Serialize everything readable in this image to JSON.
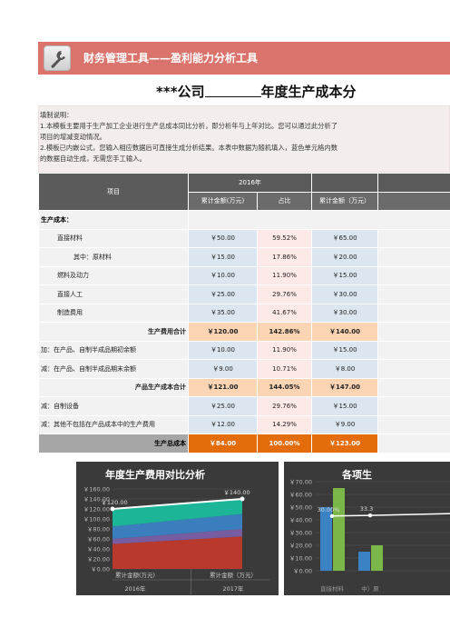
{
  "banner": {
    "title": "财务管理工具——盈利能力分析工具",
    "icon": "wrench-icon"
  },
  "title": {
    "prefix": "***公司",
    "suffix": "年度生产成本分"
  },
  "notes": [
    "填制说明：",
    "1.本模板主要用于生产加工企业进行生产总成本同比分析，即分析年与上年对比。您可以通过此分析了",
    "项目的增减变动情况。",
    "2.模板已内嵌公式，您输入相应数据后可直接生成分析结果。本表中数据为随机填入，蓝色单元格内数",
    "的数据自动生成，无需您手工输入。"
  ],
  "table": {
    "header": {
      "item": "项目",
      "year1": "2016年",
      "col_amount1": "累计金额(万元)",
      "col_share": "占比",
      "col_amount2": "累计金额（万元）"
    },
    "section_label": "生产成本：",
    "rows": [
      {
        "label": "直接材料",
        "a": "￥50.00",
        "p": "59.52%",
        "b": "￥65.00",
        "style": "i1"
      },
      {
        "label": "其中：原材料",
        "a": "￥15.00",
        "p": "17.86%",
        "b": "￥20.00",
        "style": "i2"
      },
      {
        "label": "燃料及动力",
        "a": "￥10.00",
        "p": "11.90%",
        "b": "￥15.00",
        "style": "i1"
      },
      {
        "label": "直接人工",
        "a": "￥25.00",
        "p": "29.76%",
        "b": "￥30.00",
        "style": "i1"
      },
      {
        "label": "制造费用",
        "a": "￥35.00",
        "p": "41.67%",
        "b": "￥30.00",
        "style": "i1"
      },
      {
        "label": "生产费用合计",
        "a": "￥120.00",
        "p": "142.86%",
        "b": "￥140.00",
        "style": "sum"
      },
      {
        "label": "加：在产品、自制半成品期初余额",
        "a": "￥10.00",
        "p": "11.90%",
        "b": "￥15.00",
        "style": "plain"
      },
      {
        "label": "减：在产品、自制半成品期末余额",
        "a": "￥9.00",
        "p": "10.71%",
        "b": "￥8.00",
        "style": "plain"
      },
      {
        "label": "产品生产成本合计",
        "a": "￥121.00",
        "p": "144.05%",
        "b": "￥147.00",
        "style": "sum"
      },
      {
        "label": "减：自制设备",
        "a": "￥25.00",
        "p": "29.76%",
        "b": "￥15.00",
        "style": "plain"
      },
      {
        "label": "减：其他不包括在产品成本中的生产费用",
        "a": "￥12.00",
        "p": "14.29%",
        "b": "￥9.00",
        "style": "plain"
      },
      {
        "label": "生产总成本",
        "a": "￥84.00",
        "p": "100.00%",
        "b": "￥123.00",
        "style": "total"
      }
    ]
  },
  "chart_data": [
    {
      "type": "area",
      "title": "年度生产费用对比分析",
      "categories": [
        "累计金额(万元)\n2016年",
        "累计金额（万元）\n2017年"
      ],
      "category_labels": [
        "累计金额(万元)",
        "累计金额（万元）"
      ],
      "group_labels": [
        "2016年",
        "2017年"
      ],
      "stack": [
        {
          "values": [
            50,
            65
          ],
          "color": "#c0392b"
        },
        {
          "values": [
            10,
            15
          ],
          "color": "#7b5ea7"
        },
        {
          "values": [
            25,
            30
          ],
          "color": "#3b82c4"
        },
        {
          "values": [
            35,
            30
          ],
          "color": "#1abc9c"
        }
      ],
      "line": {
        "values": [
          120,
          140
        ],
        "labels": [
          "￥120.00",
          "￥140.00"
        ],
        "color": "#ffffff"
      },
      "ylim": [
        0,
        160
      ],
      "yticks": [
        "￥0.00",
        "￥20.00",
        "￥40.00",
        "￥60.00",
        "￥80.00",
        "￥100.00",
        "￥120.00",
        "￥140.00",
        "￥160.00"
      ]
    },
    {
      "type": "bar",
      "title": "各项生",
      "categories": [
        "直接材料",
        "中）原"
      ],
      "series": [
        {
          "values": [
            50,
            15
          ],
          "color": "#3b82c4"
        },
        {
          "values": [
            65,
            20
          ],
          "color": "#7ab648"
        }
      ],
      "line": {
        "values": [
          43,
          43.5
        ],
        "labels": [
          "30.00%",
          "33.3"
        ],
        "color": "#ffffff"
      },
      "ylim": [
        0,
        70
      ],
      "yticks": [
        "￥0.00",
        "￥10.00",
        "￥20.00",
        "￥30.00",
        "￥40.00",
        "￥50.00",
        "￥60.00",
        "￥70.00"
      ]
    }
  ]
}
